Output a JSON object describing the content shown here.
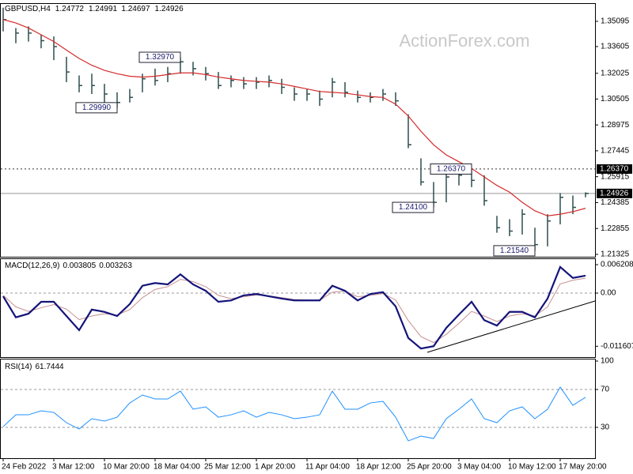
{
  "chart_data": [
    {
      "type": "ohlc",
      "title": "GBPUSD,H4",
      "header_values": [
        1.24772,
        1.24991,
        1.24697,
        1.24926
      ],
      "watermark": "ActionForex.com",
      "categories": [
        "24 Feb 2022",
        null,
        null,
        null,
        "3 Mar 12:00",
        null,
        null,
        null,
        "10 Mar 20:00",
        null,
        null,
        null,
        "18 Mar 04:00",
        null,
        null,
        null,
        "25 Mar 12:00",
        null,
        null,
        null,
        "1 Apr 20:00",
        null,
        null,
        null,
        "11 Apr 04:00",
        null,
        null,
        null,
        "18 Apr 12:00",
        null,
        null,
        null,
        "25 Apr 20:00",
        null,
        null,
        null,
        "3 May 04:00",
        null,
        null,
        null,
        "10 May 12:00",
        null,
        null,
        null,
        "17 May 20:00",
        null,
        null
      ],
      "high": [
        1.359,
        1.347,
        1.348,
        1.343,
        1.342,
        1.33,
        1.319,
        1.32,
        1.314,
        1.309,
        1.311,
        1.32,
        1.323,
        1.324,
        1.3297,
        1.327,
        1.324,
        1.321,
        1.319,
        1.318,
        1.318,
        1.319,
        1.317,
        1.312,
        1.311,
        1.31,
        1.3175,
        1.315,
        1.31,
        1.309,
        1.311,
        1.309,
        1.296,
        1.27,
        1.256,
        1.262,
        1.263,
        1.2637,
        1.26,
        1.236,
        1.234,
        1.24,
        1.229,
        1.237,
        1.2495,
        1.248,
        1.24991
      ],
      "low": [
        1.345,
        1.338,
        1.339,
        1.335,
        1.328,
        1.315,
        1.309,
        1.308,
        1.303,
        1.2999,
        1.303,
        1.309,
        1.313,
        1.315,
        1.32,
        1.319,
        1.316,
        1.311,
        1.312,
        1.311,
        1.311,
        1.312,
        1.308,
        1.304,
        1.304,
        1.301,
        1.306,
        1.306,
        1.303,
        1.303,
        1.304,
        1.301,
        1.276,
        1.254,
        1.241,
        1.244,
        1.254,
        1.253,
        1.242,
        1.226,
        1.224,
        1.225,
        1.2154,
        1.218,
        1.231,
        1.237,
        1.24697
      ],
      "close": [
        1.352,
        1.344,
        1.344,
        1.3395,
        1.336,
        1.321,
        1.313,
        1.313,
        1.308,
        1.303,
        1.306,
        1.317,
        1.316,
        1.32,
        1.327,
        1.323,
        1.32,
        1.313,
        1.316,
        1.314,
        1.315,
        1.316,
        1.312,
        1.308,
        1.308,
        1.305,
        1.315,
        1.309,
        1.306,
        1.306,
        1.308,
        1.304,
        1.278,
        1.256,
        1.244,
        1.259,
        1.26,
        1.257,
        1.245,
        1.229,
        1.227,
        1.237,
        1.219,
        1.233,
        1.247,
        1.241,
        1.24926
      ],
      "bar_color": "#2f4f4f",
      "ma_values": [
        1.352,
        1.35,
        1.347,
        1.343,
        1.339,
        1.334,
        1.329,
        1.325,
        1.322,
        1.32,
        1.3185,
        1.318,
        1.3185,
        1.3195,
        1.3205,
        1.3205,
        1.3195,
        1.318,
        1.317,
        1.316,
        1.3155,
        1.315,
        1.314,
        1.3125,
        1.311,
        1.3095,
        1.309,
        1.3085,
        1.3075,
        1.3065,
        1.306,
        1.302,
        1.295,
        1.286,
        1.278,
        1.272,
        1.268,
        1.264,
        1.259,
        1.254,
        1.25,
        1.244,
        1.239,
        1.236,
        1.237,
        1.2385,
        1.2405
      ],
      "ma_color": "#d42a2a",
      "ylim": [
        1.21185,
        1.36122
      ],
      "yticks": [
        1.35095,
        1.33605,
        1.32025,
        1.30505,
        1.28975,
        1.27445,
        1.25915,
        1.24385,
        1.22855,
        1.21325
      ],
      "hlines": [
        {
          "value": 1.2637,
          "label": "1.26370",
          "style": "dashed"
        },
        {
          "value": 1.24926,
          "label": "1.24926",
          "style": "solid"
        }
      ],
      "annotations": [
        {
          "value": 1.3297,
          "label": "1.32970"
        },
        {
          "value": 1.2999,
          "label": "1.29990"
        },
        {
          "value": 1.2637,
          "label": "1.26370"
        },
        {
          "value": 1.241,
          "label": "1.24100"
        },
        {
          "value": 1.2154,
          "label": "1.21540"
        }
      ]
    },
    {
      "type": "macd",
      "title": "MACD(12,26,9)",
      "macd": {
        "color": "#14147a",
        "values": [
          -0.0007,
          -0.0053,
          -0.0045,
          -0.0019,
          -0.0019,
          -0.005,
          -0.0081,
          -0.0036,
          -0.0041,
          -0.005,
          -0.0024,
          0.0016,
          0.0022,
          0.0019,
          0.0041,
          0.0019,
          0.0005,
          -0.0019,
          -0.0016,
          -0.0005,
          -0.0002,
          -0.0007,
          -0.0012,
          -0.0016,
          -0.0016,
          -0.0016,
          0.0016,
          0.0005,
          -0.0016,
          -0.0002,
          0.0002,
          -0.0029,
          -0.0098,
          -0.0121,
          -0.0116,
          -0.0076,
          -0.0047,
          -0.0019,
          -0.0059,
          -0.0071,
          -0.0041,
          -0.0041,
          -0.0053,
          -0.0012,
          0.0057,
          0.0033,
          0.003805
        ]
      },
      "signal": {
        "color": "#c89090",
        "values": [
          -0.0005,
          -0.003,
          -0.004,
          -0.0032,
          -0.0025,
          -0.0035,
          -0.0058,
          -0.005,
          -0.0045,
          -0.0048,
          -0.0036,
          -0.001,
          0.0008,
          0.0014,
          0.003,
          0.0025,
          0.0014,
          -0.0005,
          -0.0012,
          -0.0008,
          -0.0004,
          -0.0006,
          -0.001,
          -0.0014,
          -0.0015,
          -0.0016,
          0.0002,
          0.0004,
          -0.0008,
          -0.0005,
          -0.0001,
          -0.0015,
          -0.006,
          -0.0095,
          -0.0108,
          -0.009,
          -0.0066,
          -0.004,
          -0.005,
          -0.0062,
          -0.005,
          -0.0045,
          -0.005,
          -0.003,
          0.002,
          0.0028,
          0.003263
        ]
      },
      "ylim": [
        -0.01397,
        0.00759
      ],
      "yticks": [
        0.006208,
        {
          "value": 0,
          "label": "0.00"
        },
        -0.011607
      ],
      "levels": [
        0
      ]
    },
    {
      "type": "rsi",
      "title": "RSI(14)",
      "color": "#1e90ff",
      "values": [
        30.8,
        43.3,
        43.3,
        47.5,
        45.8,
        35.0,
        28.3,
        39.2,
        36.7,
        40.8,
        55.8,
        64.2,
        60.0,
        60.0,
        68.3,
        49.2,
        51.7,
        40.8,
        43.3,
        47.5,
        40.8,
        45.8,
        43.3,
        39.2,
        40.8,
        43.3,
        68.3,
        49.2,
        49.2,
        55.8,
        57.5,
        40.8,
        15.8,
        20.8,
        18.3,
        39.2,
        49.2,
        60.0,
        39.2,
        35.0,
        47.5,
        51.7,
        39.2,
        49.2,
        72.5,
        53.3,
        61.7444
      ],
      "ylim": [
        -2.5,
        101.7
      ],
      "yticks": [
        100,
        70,
        30
      ],
      "levels": [
        70,
        30
      ]
    }
  ]
}
